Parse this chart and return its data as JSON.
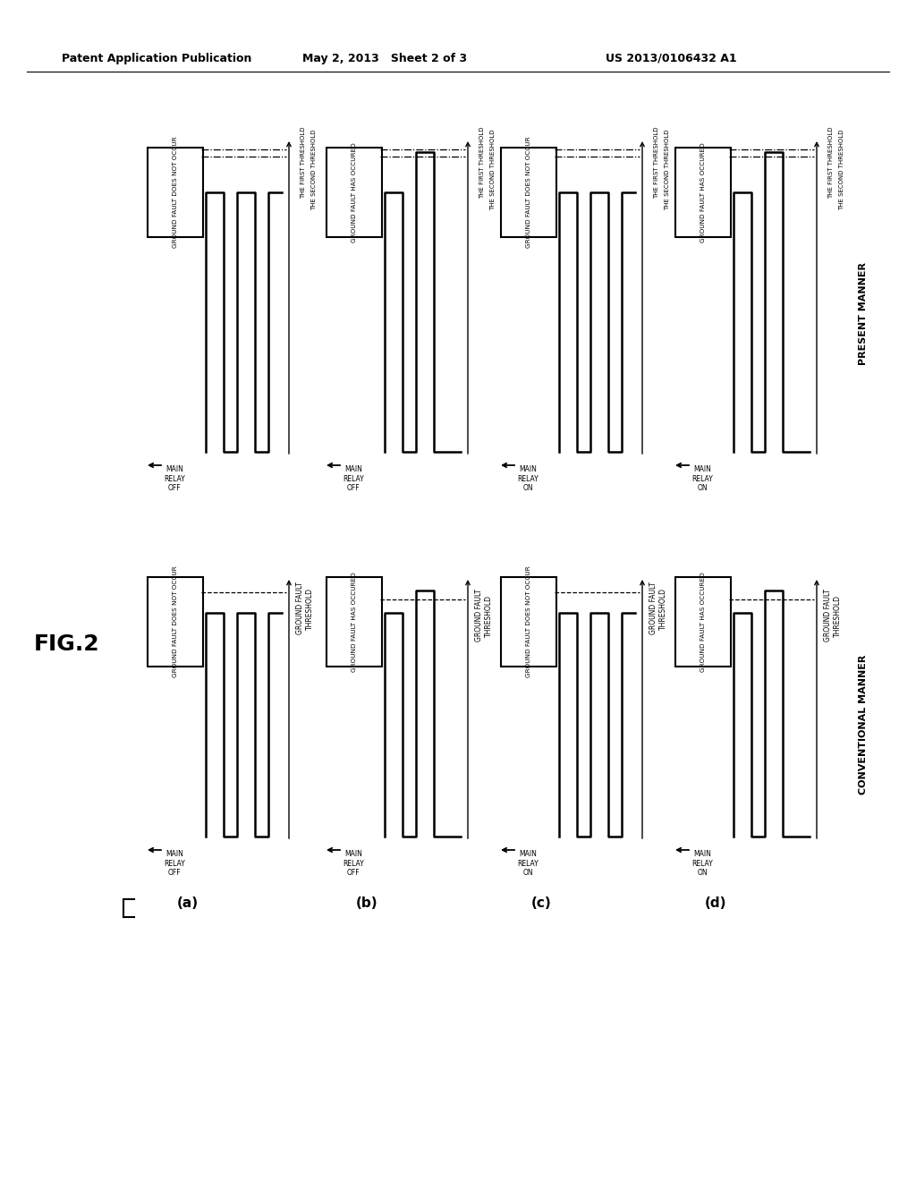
{
  "header_left": "Patent Application Publication",
  "header_mid": "May 2, 2013   Sheet 2 of 3",
  "header_right": "US 2013/0106432 A1",
  "fig_label": "FIG.2",
  "row_labels": [
    "(a)",
    "(b)",
    "(c)",
    "(d)"
  ],
  "box_no_fault": "GROUND FAULT DOES NOT OCCUR",
  "box_fault": "GROUND FAULT HAS OCCURED",
  "conv_thresh_lbl": "GROUND FAULT\nTHRESHOLD",
  "pres_thresh1_lbl": "THE FIRST THRESHOLD",
  "pres_thresh2_lbl": "THE SECOND THRESHOLD",
  "relay_off": "MAIN\nRELAY\nOFF",
  "relay_on": "MAIN\nRELAY\nON",
  "present_manner": "PRESENT MANNER",
  "conventional_manner": "CONVENTIONAL MANNER",
  "background_color": "#ffffff"
}
